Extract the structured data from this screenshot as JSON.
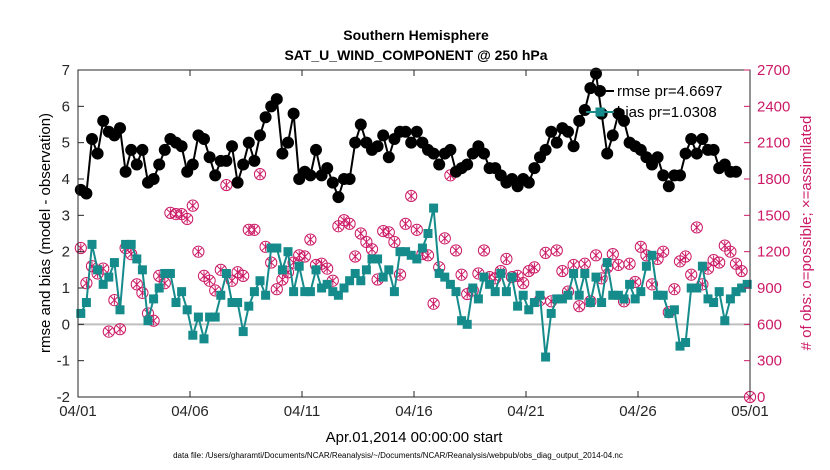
{
  "chart_data": {
    "type": "line",
    "title_lines": [
      "Southern Hemisphere",
      "SAT_U_WIND_COMPONENT @ 250 hPa"
    ],
    "xlabel": "Apr.01,2014 00:00:00 start",
    "ylabel_left": "rmse and bias (model - observation)",
    "ylabel_right": "# of obs: o=possible; ×=assimilated",
    "xlim": [
      0,
      30
    ],
    "ylim_left": [
      -2,
      7
    ],
    "ylim_right": [
      0,
      2700
    ],
    "x_ticks": [
      {
        "x": 0,
        "label": "04/01"
      },
      {
        "x": 5,
        "label": "04/06"
      },
      {
        "x": 10,
        "label": "04/11"
      },
      {
        "x": 15,
        "label": "04/16"
      },
      {
        "x": 20,
        "label": "04/21"
      },
      {
        "x": 25,
        "label": "04/26"
      },
      {
        "x": 30,
        "label": "05/01"
      }
    ],
    "y_ticks_left": [
      -2,
      -1,
      0,
      1,
      2,
      3,
      4,
      5,
      6,
      7
    ],
    "y_ticks_right": [
      0,
      300,
      600,
      900,
      1200,
      1500,
      1800,
      2100,
      2400,
      2700
    ],
    "x_step_days": 0.25,
    "zero_line": 0,
    "grid": false,
    "legend_position": "top-right",
    "colors": {
      "rmse": "#000000",
      "bias": "#158b8b",
      "obs": "#cc1a66",
      "zero": "#bfbfbf"
    },
    "series": [
      {
        "name": "rmse pr=4.6697",
        "axis": "left",
        "marker": "circle",
        "values": [
          3.7,
          3.6,
          5.1,
          4.7,
          5.6,
          5.3,
          5.2,
          5.4,
          4.2,
          4.8,
          4.4,
          4.8,
          3.9,
          4.0,
          4.4,
          4.8,
          5.1,
          5.0,
          4.9,
          4.2,
          4.4,
          5.2,
          5.1,
          4.6,
          4.1,
          4.5,
          4.5,
          4.9,
          3.9,
          4.4,
          5.0,
          4.5,
          5.2,
          5.7,
          6.0,
          6.2,
          4.7,
          5.0,
          5.8,
          4.0,
          4.2,
          4.1,
          4.8,
          4.1,
          4.3,
          3.9,
          3.5,
          4.0,
          4.0,
          5.0,
          5.5,
          5.0,
          4.8,
          4.9,
          5.2,
          4.6,
          5.1,
          5.3,
          5.3,
          5.0,
          5.3,
          5.0,
          4.8,
          4.7,
          4.4,
          4.7,
          4.8,
          4.2,
          4.3,
          4.4,
          4.7,
          4.9,
          4.7,
          4.3,
          4.3,
          4.1,
          3.9,
          4.0,
          3.8,
          4.0,
          3.9,
          4.3,
          4.6,
          4.8,
          5.3,
          5.0,
          5.4,
          5.3,
          4.9,
          5.6,
          5.9,
          6.5,
          6.9,
          5.8,
          4.7,
          5.2,
          5.8,
          5.6,
          5.0,
          4.9,
          4.8,
          4.6,
          4.4,
          4.6,
          4.1,
          3.8,
          4.1,
          4.1,
          4.7,
          5.1,
          4.7,
          5.1,
          4.8,
          4.8,
          4.3,
          4.4,
          4.2,
          4.2
        ]
      },
      {
        "name": "bias pr=1.0308",
        "axis": "left",
        "marker": "square",
        "values": [
          0.3,
          0.6,
          2.2,
          1.5,
          1.1,
          1.3,
          1.7,
          0.4,
          2.2,
          2.2,
          1.8,
          1.5,
          0.1,
          0.7,
          1.0,
          1.4,
          1.4,
          0.6,
          0.9,
          0.4,
          -0.3,
          0.2,
          -0.4,
          0.2,
          0.2,
          0.8,
          1.4,
          0.6,
          0.6,
          -0.2,
          0.5,
          0.9,
          1.2,
          0.8,
          2.1,
          2.1,
          1.5,
          2.0,
          0.9,
          1.6,
          0.9,
          0.9,
          1.5,
          1.0,
          1.1,
          0.9,
          0.8,
          1.0,
          1.2,
          1.4,
          1.2,
          1.5,
          1.8,
          1.8,
          1.3,
          1.5,
          0.9,
          2.0,
          2.0,
          1.9,
          1.8,
          2.1,
          2.5,
          3.2,
          1.4,
          1.3,
          1.1,
          0.9,
          0.1,
          0.0,
          1.0,
          0.7,
          1.3,
          1.1,
          0.9,
          1.4,
          0.9,
          1.3,
          0.5,
          0.8,
          0.4,
          0.6,
          0.8,
          -0.9,
          0.3,
          0.7,
          0.7,
          0.8,
          1.4,
          0.8,
          1.4,
          0.6,
          1.3,
          0.6,
          1.7,
          0.8,
          0.8,
          0.7,
          1.1,
          0.7,
          0.9,
          1.6,
          1.9,
          0.8,
          0.8,
          0.3,
          0.4,
          -0.6,
          -0.5,
          1.0,
          1.0,
          1.6,
          0.7,
          0.6,
          0.9,
          0.1,
          0.7,
          0.9,
          1.0,
          1.1
        ]
      },
      {
        "name": "possible",
        "axis": "right",
        "marker": "o",
        "legend": false,
        "values": [
          1230,
          940,
          1080,
          1020,
          1060,
          540,
          800,
          560,
          1230,
          1180,
          930,
          860,
          690,
          630,
          1000,
          940,
          1520,
          1510,
          1510,
          1470,
          1580,
          1200,
          1000,
          960,
          880,
          1050,
          1750,
          960,
          1030,
          1000,
          1380,
          1380,
          1840,
          1240,
          1110,
          890,
          970,
          1030,
          1110,
          1170,
          1160,
          1300,
          1090,
          1100,
          1060,
          960,
          1410,
          1460,
          1430,
          1160,
          1350,
          1280,
          1220,
          970,
          1370,
          1360,
          1280,
          1010,
          1430,
          1660,
          1380,
          1180,
          1170,
          770,
          1070,
          1310,
          1830,
          1210,
          1010,
          850,
          880,
          1020,
          1210,
          990,
          980,
          1040,
          1140,
          990,
          1000,
          940,
          1040,
          1070,
          800,
          1190,
          790,
          1210,
          1040,
          870,
          1090,
          750,
          1100,
          790,
          1170,
          980,
          1070,
          1180,
          1090,
          790,
          1100,
          950,
          1240,
          1170,
          930,
          1140,
          1200,
          700,
          890,
          1120,
          1160,
          1010,
          1400,
          930,
          1060,
          1130,
          1110,
          1250,
          1200,
          1100,
          1040,
          0
        ]
      },
      {
        "name": "assimilated",
        "axis": "right",
        "marker": "x",
        "legend": false,
        "values": [
          1230,
          940,
          1080,
          1020,
          1060,
          540,
          800,
          560,
          1230,
          1180,
          930,
          860,
          690,
          630,
          1000,
          940,
          1520,
          1510,
          1510,
          1470,
          1580,
          1200,
          1000,
          960,
          880,
          1050,
          1750,
          960,
          1030,
          1000,
          1380,
          1380,
          1840,
          1240,
          1110,
          890,
          970,
          1030,
          1110,
          1170,
          1160,
          1300,
          1090,
          1100,
          1060,
          960,
          1410,
          1460,
          1430,
          1160,
          1350,
          1280,
          1220,
          970,
          1370,
          1360,
          1280,
          1010,
          1430,
          1660,
          1380,
          1180,
          1170,
          770,
          1070,
          1310,
          1830,
          1210,
          1010,
          850,
          880,
          1020,
          1210,
          990,
          980,
          1040,
          1140,
          990,
          1000,
          940,
          1040,
          1070,
          800,
          1190,
          790,
          1210,
          1040,
          870,
          1090,
          750,
          1100,
          790,
          1170,
          980,
          1070,
          1180,
          1090,
          790,
          1100,
          950,
          1240,
          1170,
          930,
          1140,
          1200,
          700,
          890,
          1120,
          1160,
          1010,
          1400,
          930,
          1060,
          1130,
          1110,
          1250,
          1200,
          1100,
          1040,
          0
        ]
      }
    ],
    "footer": "data file: /Users/gharamti/Documents/NCAR/Reanalysis/~/Documents/NCAR/Reanalysis/webpub/obs_diag_output_2014-04.nc"
  }
}
